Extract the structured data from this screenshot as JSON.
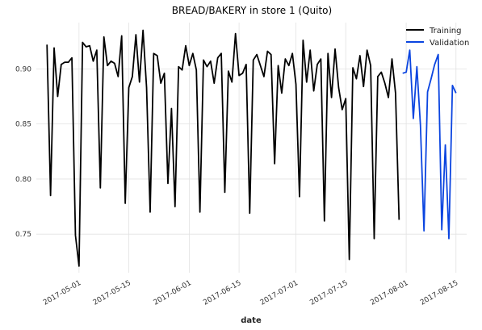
{
  "chart_data": {
    "type": "line",
    "title": "BREAD/BAKERY in store 1 (Quito)",
    "x_label": "date",
    "xlim": [
      "2017-04-19",
      "2017-08-18"
    ],
    "xticks": [
      "2017-05-01",
      "2017-05-15",
      "2017-06-01",
      "2017-06-15",
      "2017-07-01",
      "2017-07-15",
      "2017-08-01",
      "2017-08-15"
    ],
    "ylim": [
      0.715,
      0.942
    ],
    "yticks": [
      0.75,
      {
        "value": 0.8,
        "label": "0.80"
      },
      0.85,
      {
        "value": 0.9,
        "label": "0.90"
      }
    ],
    "grid": true,
    "legend": "upper right",
    "series": [
      {
        "name": "Training",
        "color": "#000000",
        "x": [
          "2017-04-22",
          "2017-04-23",
          "2017-04-24",
          "2017-04-25",
          "2017-04-26",
          "2017-04-27",
          "2017-04-28",
          "2017-04-29",
          "2017-04-30",
          "2017-05-01",
          "2017-05-02",
          "2017-05-03",
          "2017-05-04",
          "2017-05-05",
          "2017-05-06",
          "2017-05-07",
          "2017-05-08",
          "2017-05-09",
          "2017-05-10",
          "2017-05-11",
          "2017-05-12",
          "2017-05-13",
          "2017-05-14",
          "2017-05-15",
          "2017-05-16",
          "2017-05-17",
          "2017-05-18",
          "2017-05-19",
          "2017-05-20",
          "2017-05-21",
          "2017-05-22",
          "2017-05-23",
          "2017-05-24",
          "2017-05-25",
          "2017-05-26",
          "2017-05-27",
          "2017-05-28",
          "2017-05-29",
          "2017-05-30",
          "2017-05-31",
          "2017-06-01",
          "2017-06-02",
          "2017-06-03",
          "2017-06-04",
          "2017-06-05",
          "2017-06-06",
          "2017-06-07",
          "2017-06-08",
          "2017-06-09",
          "2017-06-10",
          "2017-06-11",
          "2017-06-12",
          "2017-06-13",
          "2017-06-14",
          "2017-06-15",
          "2017-06-16",
          "2017-06-17",
          "2017-06-18",
          "2017-06-19",
          "2017-06-20",
          "2017-06-21",
          "2017-06-22",
          "2017-06-23",
          "2017-06-24",
          "2017-06-25",
          "2017-06-26",
          "2017-06-27",
          "2017-06-28",
          "2017-06-29",
          "2017-06-30",
          "2017-07-01",
          "2017-07-02",
          "2017-07-03",
          "2017-07-04",
          "2017-07-05",
          "2017-07-06",
          "2017-07-07",
          "2017-07-08",
          "2017-07-09",
          "2017-07-10",
          "2017-07-11",
          "2017-07-12",
          "2017-07-13",
          "2017-07-14",
          "2017-07-15",
          "2017-07-16",
          "2017-07-17",
          "2017-07-18",
          "2017-07-19",
          "2017-07-20",
          "2017-07-21",
          "2017-07-22",
          "2017-07-23",
          "2017-07-24",
          "2017-07-25",
          "2017-07-26",
          "2017-07-27",
          "2017-07-28",
          "2017-07-29",
          "2017-07-30"
        ],
        "values": [
          0.922,
          0.785,
          0.919,
          0.875,
          0.904,
          0.906,
          0.906,
          0.91,
          0.749,
          0.721,
          0.924,
          0.92,
          0.921,
          0.907,
          0.917,
          0.792,
          0.929,
          0.903,
          0.907,
          0.905,
          0.893,
          0.93,
          0.778,
          0.883,
          0.893,
          0.931,
          0.888,
          0.935,
          0.883,
          0.77,
          0.914,
          0.912,
          0.887,
          0.896,
          0.796,
          0.864,
          0.775,
          0.902,
          0.899,
          0.921,
          0.903,
          0.914,
          0.899,
          0.77,
          0.908,
          0.902,
          0.907,
          0.887,
          0.91,
          0.914,
          0.788,
          0.898,
          0.888,
          0.932,
          0.894,
          0.896,
          0.904,
          0.769,
          0.908,
          0.913,
          0.903,
          0.893,
          0.916,
          0.913,
          0.814,
          0.903,
          0.878,
          0.909,
          0.903,
          0.914,
          0.886,
          0.784,
          0.926,
          0.888,
          0.917,
          0.88,
          0.904,
          0.909,
          0.762,
          0.914,
          0.874,
          0.918,
          0.883,
          0.863,
          0.873,
          0.727,
          0.901,
          0.891,
          0.912,
          0.884,
          0.917,
          0.903,
          0.746,
          0.893,
          0.897,
          0.887,
          0.874,
          0.909,
          0.878,
          0.763
        ]
      },
      {
        "name": "Validation",
        "color": "#0b45e0",
        "x": [
          "2017-07-31",
          "2017-08-01",
          "2017-08-02",
          "2017-08-03",
          "2017-08-04",
          "2017-08-05",
          "2017-08-06",
          "2017-08-07",
          "2017-08-08",
          "2017-08-09",
          "2017-08-10",
          "2017-08-11",
          "2017-08-12",
          "2017-08-13",
          "2017-08-14",
          "2017-08-15"
        ],
        "values": [
          0.896,
          0.897,
          0.917,
          0.855,
          0.902,
          0.849,
          0.753,
          0.879,
          0.891,
          0.904,
          0.913,
          0.754,
          0.831,
          0.746,
          0.885,
          0.878
        ]
      }
    ]
  }
}
